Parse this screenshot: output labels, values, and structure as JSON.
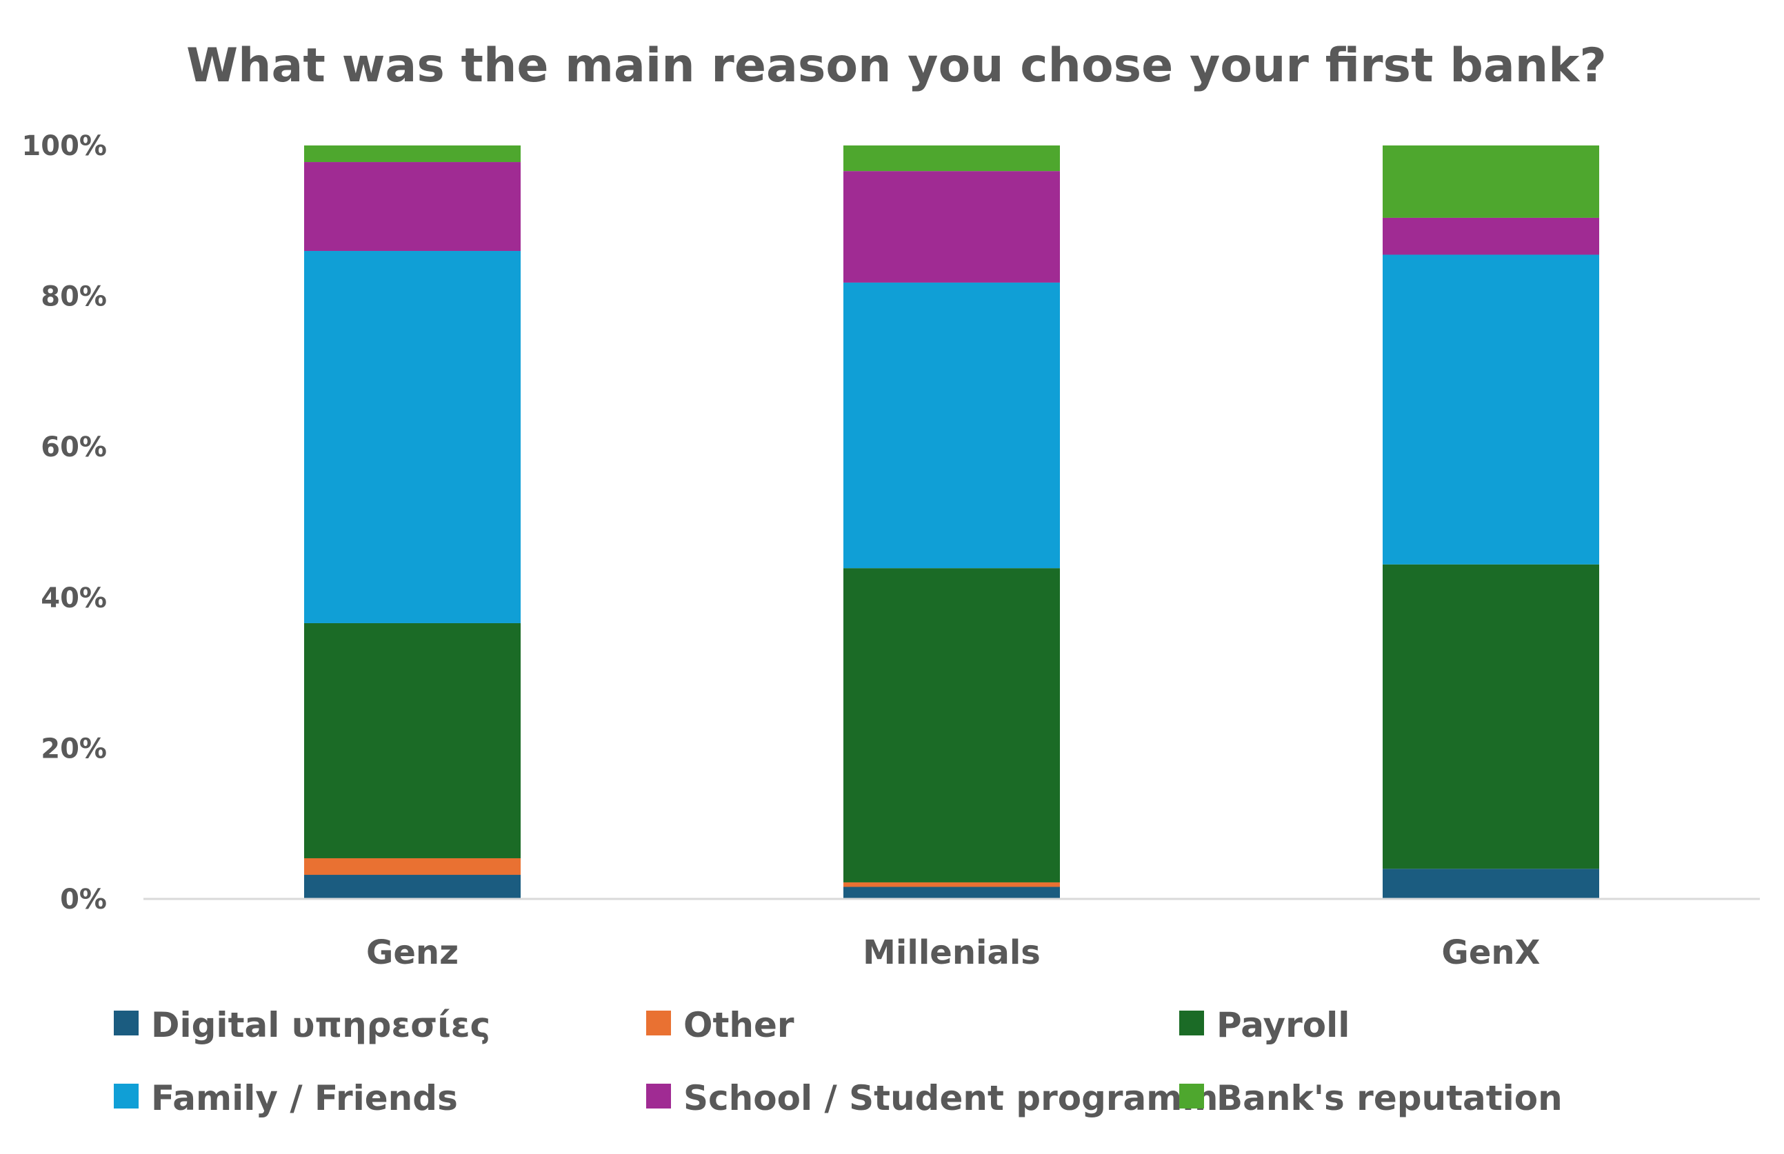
{
  "chart_data": {
    "type": "bar",
    "stacked": true,
    "normalized": true,
    "title": "What was the main reason you chose your first bank?",
    "categories": [
      "Genz",
      "Millenials",
      "GenX"
    ],
    "yticks": [
      "0%",
      "20%",
      "40%",
      "60%",
      "80%",
      "100%"
    ],
    "ylim": [
      0,
      100
    ],
    "grid": false,
    "legend_position": "bottom",
    "series": [
      {
        "name": "Digital υπηρεσίες",
        "color": "#1b5c80",
        "values": [
          3.2,
          1.6,
          4.0
        ]
      },
      {
        "name": "Other",
        "color": "#e97132",
        "values": [
          2.2,
          0.6,
          0.0
        ]
      },
      {
        "name": "Payroll",
        "color": "#1b6b26",
        "values": [
          31.2,
          41.7,
          40.4
        ]
      },
      {
        "name": "Family / Friends",
        "color": "#109fd6",
        "values": [
          49.4,
          37.9,
          41.1
        ]
      },
      {
        "name": "School / Student programm",
        "color": "#a02b93",
        "values": [
          11.8,
          14.8,
          4.9
        ]
      },
      {
        "name": "Bank's reputation",
        "color": "#4ea72e",
        "values": [
          2.2,
          3.4,
          9.6
        ]
      }
    ]
  }
}
